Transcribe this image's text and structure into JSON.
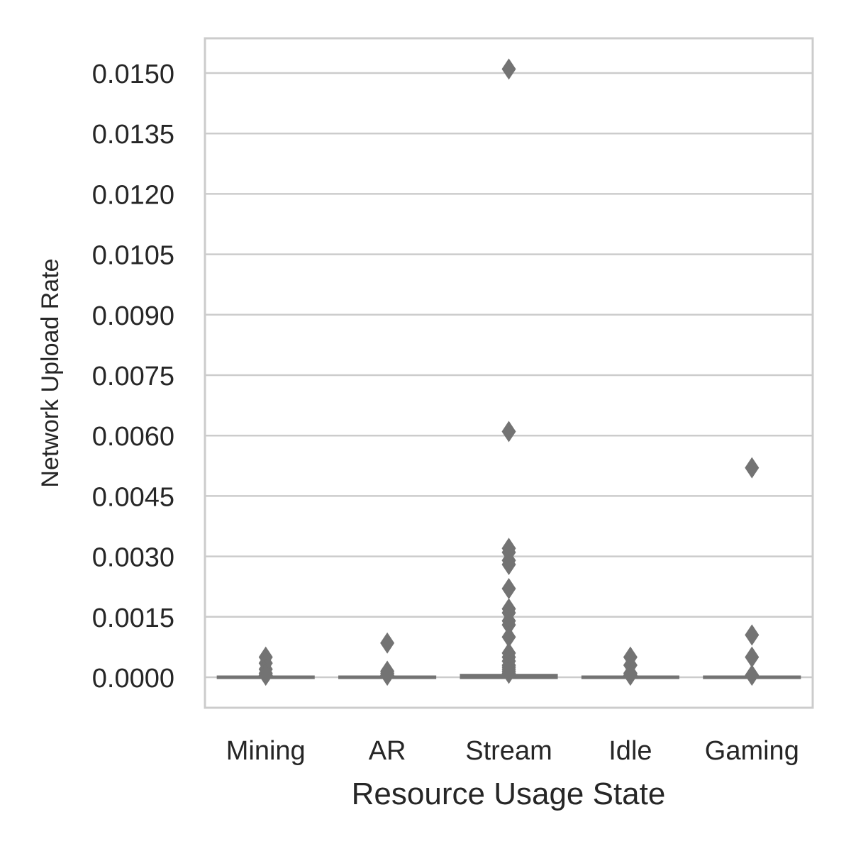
{
  "chart_data": {
    "type": "box",
    "categories": [
      "Mining",
      "AR",
      "Stream",
      "Idle",
      "Gaming"
    ],
    "xlabel": "Resource Usage State",
    "ylabel": "Network Upload Rate",
    "ylim": [
      -0.00075,
      0.0159
    ],
    "yticks": [
      "0.0000",
      "0.0015",
      "0.0030",
      "0.0045",
      "0.0060",
      "0.0075",
      "0.0090",
      "0.0105",
      "0.0120",
      "0.0135",
      "0.0150"
    ],
    "grid": true,
    "boxes": [
      {
        "category": "Mining",
        "q1": 0.0,
        "median": 0.0,
        "q3": 0.0,
        "whisker_low": 0.0,
        "whisker_high": 0.0,
        "outliers": [
          0.0005,
          0.00035,
          0.0002,
          0.0001,
          5e-05
        ]
      },
      {
        "category": "AR",
        "q1": 0.0,
        "median": 0.0,
        "q3": 0.0,
        "whisker_low": 0.0,
        "whisker_high": 0.0,
        "outliers": [
          0.00085,
          0.00015,
          0.0001,
          5e-05
        ]
      },
      {
        "category": "Stream",
        "q1": 0.0,
        "median": 2e-05,
        "q3": 4e-05,
        "whisker_low": 0.0,
        "whisker_high": 8e-05,
        "outliers": [
          0.0151,
          0.0061,
          0.0032,
          0.0031,
          0.0029,
          0.0028,
          0.0022,
          0.0017,
          0.0016,
          0.0014,
          0.0013,
          0.001,
          0.0006,
          0.0005,
          0.0004,
          0.0003,
          0.00025,
          0.0002,
          0.00015,
          0.0001
        ]
      },
      {
        "category": "Idle",
        "q1": 0.0,
        "median": 0.0,
        "q3": 0.0,
        "whisker_low": 0.0,
        "whisker_high": 0.0,
        "outliers": [
          0.0005,
          0.0003,
          0.0001,
          5e-05
        ]
      },
      {
        "category": "Gaming",
        "q1": 0.0,
        "median": 0.0,
        "q3": 0.0,
        "whisker_low": 0.0,
        "whisker_high": 0.0,
        "outliers": [
          0.0052,
          0.00105,
          0.0005,
          5e-05
        ]
      }
    ],
    "colors": {
      "box": "#737373",
      "grid": "#cccccc",
      "frame": "#cccccc",
      "text": "#262626"
    }
  }
}
